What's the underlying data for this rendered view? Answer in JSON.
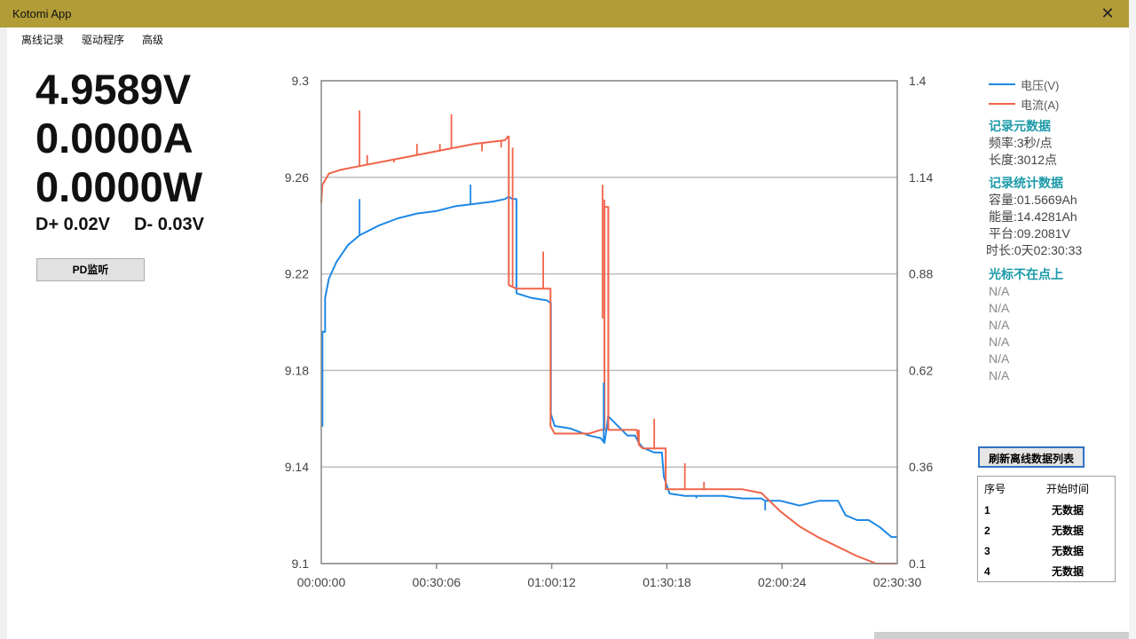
{
  "window": {
    "title": "Kotomi App",
    "close_glyph": "✕"
  },
  "menu": [
    "离线记录",
    "驱动程序",
    "高级"
  ],
  "readings": {
    "voltage": "4.9589V",
    "current": "0.0000A",
    "power": "0.0000W",
    "dplus": "D+ 0.02V",
    "dminus": "D- 0.03V"
  },
  "pd_button": "PD监听",
  "legend": [
    {
      "label": "电压(V)",
      "color": "#1e88e5"
    },
    {
      "label": "电流(A)",
      "color": "#f0644a"
    }
  ],
  "meta": {
    "header": "记录元数据",
    "rate": "频率:3秒/点",
    "length": "长度:3012点"
  },
  "stats": {
    "header": "记录统计数据",
    "capacity": "容量:01.5669Ah",
    "energy": "能量:14.4281Ah",
    "platform": "平台:09.2081V",
    "duration": "时长:0天02:30:33"
  },
  "cursor": {
    "header": "光标不在点上",
    "values": [
      "N/A",
      "N/A",
      "N/A",
      "N/A",
      "N/A",
      "N/A"
    ]
  },
  "refresh_button": "刷新离线数据列表",
  "table": {
    "headers": [
      "序号",
      "开始时间"
    ],
    "rows": [
      [
        "1",
        "无数据"
      ],
      [
        "2",
        "无数据"
      ],
      [
        "3",
        "无数据"
      ],
      [
        "4",
        "无数据"
      ]
    ]
  },
  "chart_data": {
    "type": "line",
    "x_ticks": [
      "00:00:00",
      "00:30:06",
      "01:00:12",
      "01:30:18",
      "02:00:24",
      "02:30:30"
    ],
    "y_left_ticks": [
      "9.3",
      "9.26",
      "9.22",
      "9.18",
      "9.14",
      "9.1"
    ],
    "y_right_ticks": [
      "1.4",
      "1.14",
      "0.88",
      "0.62",
      "0.36",
      "0.1"
    ],
    "ylim_left": [
      9.1,
      9.3
    ],
    "ylim_right": [
      0.1,
      1.4
    ],
    "xlim_minutes": [
      0,
      150.5
    ],
    "grid": true,
    "series": [
      {
        "name": "电压(V)",
        "color": "#1e88e5",
        "axis": "left",
        "x": [
          0,
          0.3,
          1,
          2,
          4,
          7,
          10,
          15,
          20,
          25,
          30,
          35,
          40,
          45,
          48,
          49,
          50,
          51,
          55,
          59,
          59.8,
          60,
          61,
          65,
          70,
          73,
          74,
          75,
          80,
          82,
          83,
          84,
          87,
          89,
          89.5,
          91,
          95,
          100,
          105,
          110,
          115,
          116,
          120,
          125,
          130,
          133,
          135,
          137,
          140,
          143,
          146,
          149,
          150.5
        ],
        "y": [
          9.157,
          9.196,
          9.21,
          9.218,
          9.225,
          9.232,
          9.236,
          9.24,
          9.243,
          9.245,
          9.246,
          9.248,
          9.249,
          9.25,
          9.251,
          9.252,
          9.251,
          9.212,
          9.21,
          9.209,
          9.208,
          9.162,
          9.157,
          9.156,
          9.153,
          9.152,
          9.15,
          9.161,
          9.153,
          9.153,
          9.15,
          9.148,
          9.146,
          9.146,
          9.136,
          9.129,
          9.128,
          9.128,
          9.128,
          9.127,
          9.127,
          9.126,
          9.126,
          9.124,
          9.126,
          9.126,
          9.126,
          9.12,
          9.118,
          9.118,
          9.115,
          9.111,
          9.111
        ]
      },
      {
        "name": "电流(A)",
        "color": "#f0644a",
        "axis": "right",
        "x": [
          0,
          0.3,
          2,
          5,
          10,
          20,
          30,
          40,
          48,
          48.8,
          49,
          51,
          55,
          59.6,
          59.9,
          61,
          65,
          70,
          73,
          74,
          75,
          80,
          82.5,
          83,
          84,
          87,
          89.5,
          90,
          95,
          100,
          105,
          110,
          115,
          116,
          120,
          125,
          130,
          135,
          140,
          145,
          150.5
        ],
        "y": [
          1.07,
          1.12,
          1.15,
          1.16,
          1.17,
          1.19,
          1.21,
          1.23,
          1.24,
          1.25,
          0.85,
          0.84,
          0.84,
          0.84,
          0.47,
          0.45,
          0.45,
          0.45,
          0.46,
          1.06,
          0.46,
          0.46,
          0.46,
          0.42,
          0.41,
          0.41,
          0.41,
          0.3,
          0.3,
          0.3,
          0.3,
          0.3,
          0.29,
          0.28,
          0.24,
          0.2,
          0.17,
          0.145,
          0.12,
          0.1,
          0.1
        ]
      }
    ],
    "spikes_right": [
      [
        10,
        1.32
      ],
      [
        12,
        1.2
      ],
      [
        19,
        1.18
      ],
      [
        25,
        1.23
      ],
      [
        31,
        1.23
      ],
      [
        34,
        1.31
      ],
      [
        36,
        1.22
      ],
      [
        42,
        1.21
      ],
      [
        47,
        1.22
      ],
      [
        50,
        1.22
      ],
      [
        58,
        0.94
      ],
      [
        73.5,
        1.12
      ],
      [
        74,
        1.08
      ],
      [
        75,
        0.92
      ],
      [
        83,
        0.46
      ],
      [
        87,
        0.49
      ],
      [
        95,
        0.37
      ],
      [
        100,
        0.32
      ]
    ],
    "spikes_left": [
      [
        10,
        9.251
      ],
      [
        39,
        9.257
      ],
      [
        73.8,
        9.175
      ],
      [
        98,
        9.127
      ],
      [
        116,
        9.122
      ],
      [
        118,
        9.126
      ]
    ]
  }
}
